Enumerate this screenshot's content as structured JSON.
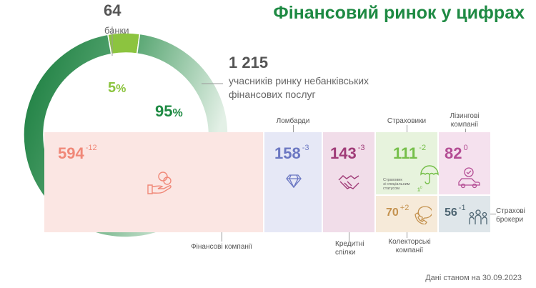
{
  "title": "Фінансовий ринок у цифрах",
  "banks": {
    "count": "64",
    "label": "банки"
  },
  "nonbank": {
    "count": "1 215",
    "label": "учасників ринку небанківських фінансових послуг"
  },
  "chart_data": [
    {
      "type": "pie",
      "categories": [
        "банки",
        "учасників ринку небанківських фінансових послуг"
      ],
      "values": [
        5,
        95
      ],
      "counts": [
        64,
        1215
      ],
      "labels": [
        "5%",
        "95%"
      ],
      "colors": [
        "#8cc43f",
        "#1e8a43"
      ]
    },
    {
      "type": "table",
      "columns": [
        "category",
        "count",
        "change"
      ],
      "rows": [
        {
          "category": "Фінансові компанії",
          "count": 594,
          "change": "-12"
        },
        {
          "category": "Ломбарди",
          "count": 158,
          "change": "-3"
        },
        {
          "category": "Кредитні спілки",
          "count": 143,
          "change": "-3"
        },
        {
          "category": "Страховики",
          "count": 111,
          "change": "-2"
        },
        {
          "category": "Лізингові компанії",
          "count": 82,
          "change": "0"
        },
        {
          "category": "Колекторські компанії",
          "count": 70,
          "change": "+2"
        },
        {
          "category": "Страхові брокери",
          "count": 56,
          "change": "-1"
        }
      ]
    }
  ],
  "tiles": {
    "fin": {
      "num": "594",
      "chg": "-12",
      "label": "Фінансові компанії",
      "color": "#f08878",
      "bg": "#fbe6e3",
      "icon": "hand-coins-icon"
    },
    "lomb": {
      "num": "158",
      "chg": "-3",
      "label": "Ломбарди",
      "color": "#6b77c2",
      "bg": "#e6e8f6",
      "icon": "diamond-icon"
    },
    "cred": {
      "num": "143",
      "chg": "-3",
      "label1": "Кредитні",
      "label2": "спілки",
      "color": "#a03c78",
      "bg": "#f1dde9",
      "icon": "handshake-icon"
    },
    "ins": {
      "num": "111",
      "chg": "-2",
      "label": "Страховики",
      "color": "#76bf4a",
      "bg": "#e7f3dd",
      "icon": "umbrella-icon",
      "note1": "Страховик",
      "note2": "зі спеціальним",
      "note3": "статусом",
      "note_num": "1",
      "note_chg": "0"
    },
    "lease": {
      "num": "82",
      "chg": "0",
      "label1": "Лізингові",
      "label2": "компанії",
      "color": "#b44d94",
      "bg": "#f5e1ee",
      "icon": "car-icon"
    },
    "coll": {
      "num": "70",
      "chg": "+2",
      "label1": "Колекторські",
      "label2": "компанії",
      "color": "#c4924f",
      "bg": "#f6ead9",
      "icon": "phone-icon"
    },
    "brok": {
      "num": "56",
      "chg": "-1",
      "label1": "Страхові",
      "label2": "брокери",
      "color": "#4e6572",
      "bg": "#dfe6ea",
      "icon": "people-icon"
    }
  },
  "footer": "Дані станом на 30.09.2023"
}
